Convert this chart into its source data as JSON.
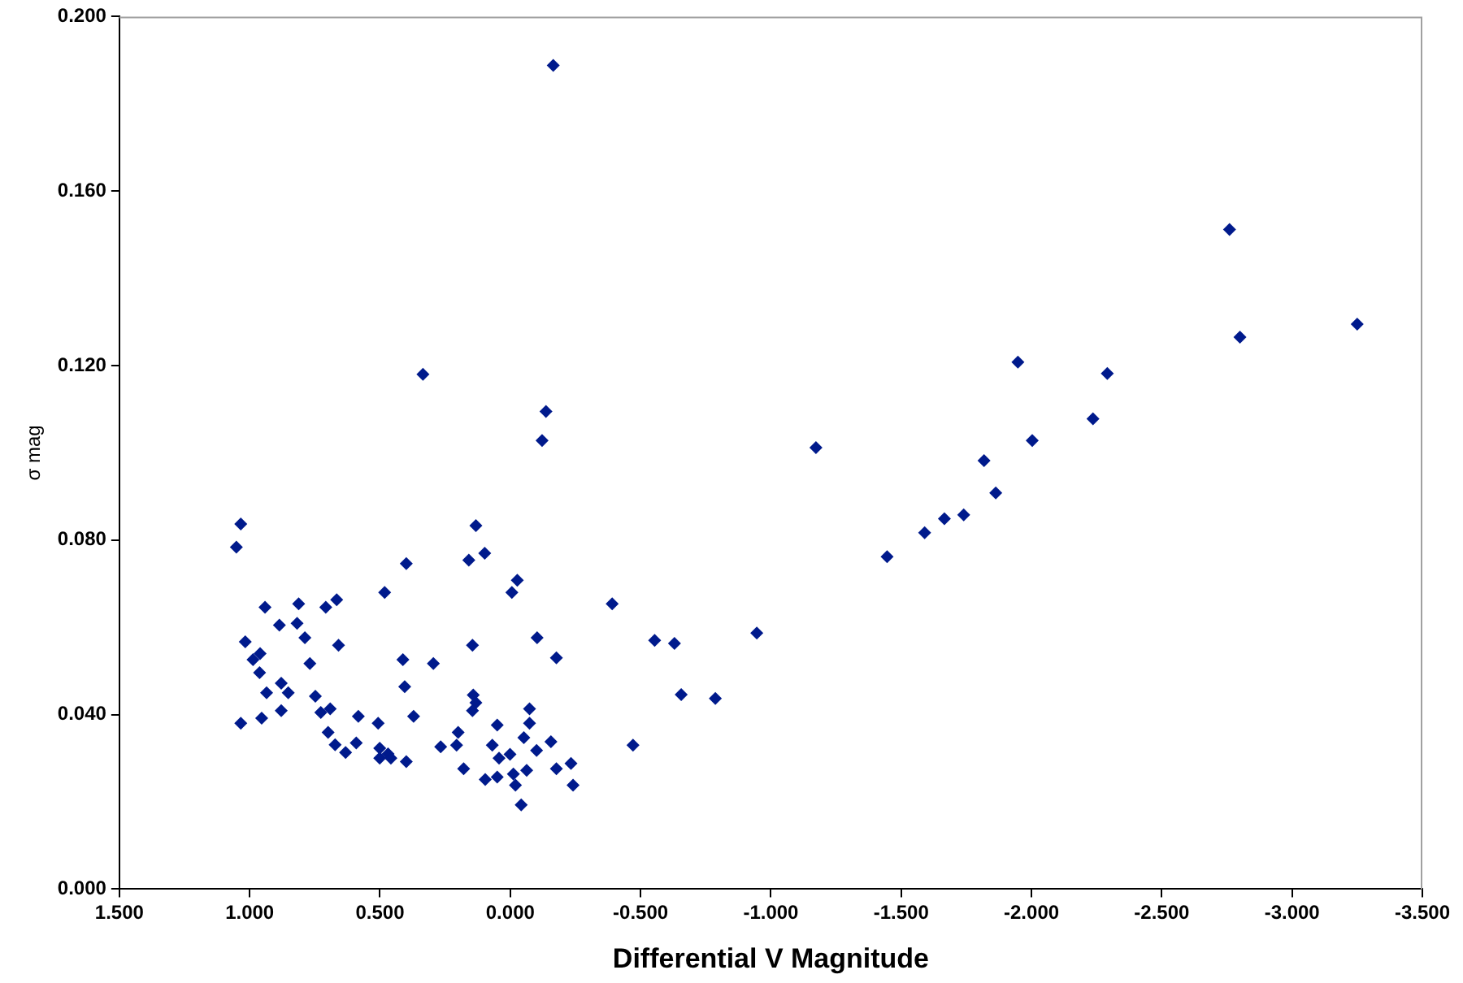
{
  "chart_data": {
    "type": "scatter",
    "xlabel": "Differential V Magnitude",
    "ylabel": "σ mag",
    "marker": "diamond",
    "grid": false,
    "legend": false,
    "xlim": [
      1.5,
      -3.5
    ],
    "xticks": [
      {
        "value": 1.5,
        "label": "1.500"
      },
      {
        "value": 1,
        "label": "1.000"
      },
      {
        "value": 0.5,
        "label": "0.500"
      },
      {
        "value": 0,
        "label": "0.000"
      },
      {
        "value": -0.5,
        "label": "-0.500"
      },
      {
        "value": -1,
        "label": "-1.000"
      },
      {
        "value": -1.5,
        "label": "-1.500"
      },
      {
        "value": -2,
        "label": "-2.000"
      },
      {
        "value": -2.5,
        "label": "-2.500"
      },
      {
        "value": -3,
        "label": "-3.000"
      },
      {
        "value": -3.5,
        "label": "-3.500"
      }
    ],
    "ylim": [
      0,
      0.2
    ],
    "yticks": [
      {
        "value": 0,
        "label": "0.000"
      },
      {
        "value": 0.04,
        "label": "0.040"
      },
      {
        "value": 0.08,
        "label": "0.080"
      },
      {
        "value": 0.12,
        "label": "0.120"
      },
      {
        "value": 0.16,
        "label": "0.160"
      },
      {
        "value": 0.2,
        "label": "0.200"
      }
    ],
    "series": [
      {
        "color": "#001a8c",
        "x": [
          1.034,
          1.051,
          0.399,
          0.482,
          0.941,
          0.812,
          0.708,
          0.666,
          0.886,
          0.818,
          1.017,
          0.788,
          0.659,
          0.96,
          0.987,
          0.962,
          0.769,
          0.412,
          0.295,
          0.879,
          0.935,
          0.852,
          0.405,
          0.748,
          0.879,
          0.954,
          1.034,
          0.727,
          0.691,
          0.583,
          0.371,
          0.507,
          0.699,
          0.672,
          0.591,
          0.632,
          0.501,
          0.501,
          0.469,
          0.458,
          0.399,
          0.132,
          0.159,
          0.098,
          -0.027,
          -0.006,
          -0.103,
          -0.177,
          0.145,
          0.142,
          0.132,
          0.145,
          -0.074,
          0.05,
          -0.074,
          0.2,
          0.267,
          0.206,
          0.069,
          -0.052,
          -0.156,
          0.043,
          0.001,
          -0.101,
          0.179,
          0.096,
          0.05,
          -0.012,
          -0.063,
          -0.02,
          -0.177,
          -0.233,
          -0.241,
          -0.042,
          -0.137,
          -0.122,
          -0.391,
          -0.554,
          -0.63,
          -0.946,
          -0.656,
          -0.787,
          -0.471,
          -1.173,
          -1.446,
          -1.59,
          -1.666,
          -1.74,
          -1.818,
          -1.863,
          -1.948,
          -2.003,
          -2.236,
          -2.291,
          -2.8,
          -3.25,
          -2.76,
          0.335,
          -0.165
        ],
        "values": [
          0.0837,
          0.0784,
          0.0746,
          0.068,
          0.0646,
          0.0654,
          0.0646,
          0.0663,
          0.0605,
          0.0609,
          0.0567,
          0.0576,
          0.0559,
          0.054,
          0.0526,
          0.0496,
          0.0517,
          0.0526,
          0.0517,
          0.0472,
          0.045,
          0.045,
          0.0464,
          0.0442,
          0.0409,
          0.0392,
          0.038,
          0.0405,
          0.0413,
          0.0396,
          0.0396,
          0.038,
          0.0359,
          0.0331,
          0.0335,
          0.0313,
          0.0323,
          0.03,
          0.031,
          0.03,
          0.0292,
          0.0833,
          0.0754,
          0.077,
          0.0708,
          0.068,
          0.0576,
          0.053,
          0.0559,
          0.0445,
          0.0427,
          0.0409,
          0.0413,
          0.0376,
          0.038,
          0.0359,
          0.0326,
          0.033,
          0.033,
          0.0347,
          0.0338,
          0.03,
          0.0309,
          0.0318,
          0.0276,
          0.0251,
          0.0257,
          0.0264,
          0.0272,
          0.0238,
          0.0276,
          0.0288,
          0.0238,
          0.0193,
          0.1095,
          0.1028,
          0.0654,
          0.057,
          0.0563,
          0.0587,
          0.0446,
          0.0437,
          0.033,
          0.1012,
          0.0762,
          0.0817,
          0.0849,
          0.0858,
          0.0982,
          0.0908,
          0.1208,
          0.1028,
          0.1078,
          0.1182,
          0.1265,
          0.1295,
          0.1512,
          0.118,
          0.1888
        ]
      }
    ]
  }
}
